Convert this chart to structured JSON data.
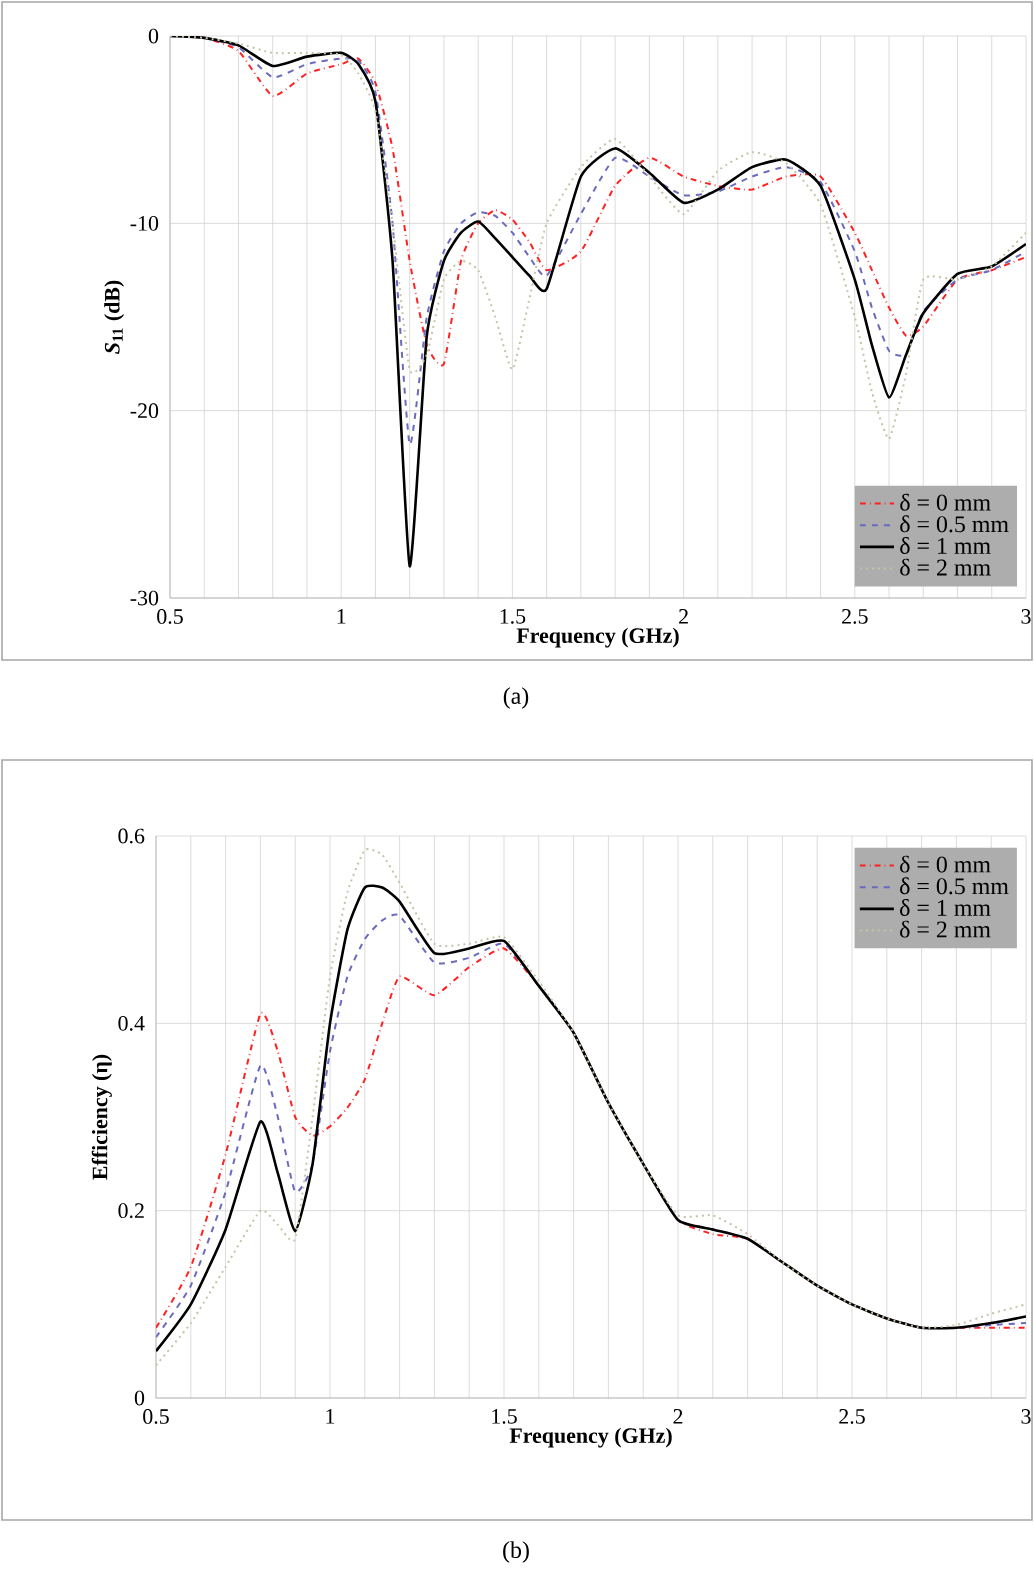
{
  "chart_data": [
    {
      "type": "line",
      "xlabel": "Frequency (GHz)",
      "ylabel": "*S*$_{11}$ (dB)",
      "annotations": [
        "(a)"
      ],
      "x": [
        0.5,
        0.6,
        0.7,
        0.8,
        0.9,
        1.0,
        1.05,
        1.1,
        1.15,
        1.2,
        1.25,
        1.3,
        1.35,
        1.4,
        1.45,
        1.5,
        1.55,
        1.6,
        1.7,
        1.8,
        1.9,
        2.0,
        2.1,
        2.2,
        2.3,
        2.4,
        2.5,
        2.55,
        2.6,
        2.65,
        2.7,
        2.8,
        2.9,
        3.0
      ],
      "series": [
        {
          "name": "δ = 0 mm",
          "color": "#ff2020",
          "line_style": "dashdot",
          "values": [
            0,
            -0.1,
            -0.8,
            -3.2,
            -2,
            -1.5,
            -1.2,
            -2.5,
            -6,
            -12,
            -16.5,
            -17.5,
            -12,
            -10,
            -9.3,
            -9.8,
            -11,
            -12.5,
            -11.5,
            -8,
            -6.5,
            -7.5,
            -8,
            -8.2,
            -7.5,
            -7.5,
            -10.5,
            -12.5,
            -14.5,
            -16,
            -15.5,
            -13,
            -12.5,
            -11.8
          ]
        },
        {
          "name": "δ = 0.5 mm",
          "color": "#6a6ac0",
          "line_style": "dashed",
          "values": [
            0,
            -0.1,
            -0.6,
            -2.2,
            -1.5,
            -1.2,
            -1.3,
            -3,
            -10,
            -21.8,
            -15,
            -11.5,
            -10,
            -9.4,
            -9.6,
            -10.5,
            -11.8,
            -12.8,
            -9.5,
            -6.5,
            -7.5,
            -8.5,
            -8.3,
            -7.5,
            -7.0,
            -7.8,
            -11.5,
            -14.5,
            -16.8,
            -17,
            -14.7,
            -13,
            -12.5,
            -11.5
          ]
        },
        {
          "name": "δ = 1 mm",
          "color": "#000000",
          "line_style": "solid",
          "values": [
            0,
            -0.1,
            -0.5,
            -1.6,
            -1.1,
            -0.9,
            -1.5,
            -3.5,
            -12,
            -28.3,
            -16,
            -12,
            -10.5,
            -9.9,
            -10.8,
            -11.8,
            -12.8,
            -13.5,
            -7.5,
            -6.0,
            -7.3,
            -8.9,
            -8.2,
            -7.0,
            -6.6,
            -8,
            -13,
            -16.5,
            -19.3,
            -17,
            -14.8,
            -12.7,
            -12.3,
            -11.1
          ]
        },
        {
          "name": "δ = 2 mm",
          "color": "#c4c4a8",
          "line_style": "dotted",
          "values": [
            0,
            -0.1,
            -0.4,
            -0.9,
            -0.9,
            -1.0,
            -2,
            -4,
            -10,
            -17.8,
            -17,
            -13,
            -12,
            -12.5,
            -15,
            -17.8,
            -14,
            -10,
            -7,
            -5.5,
            -7.5,
            -9.5,
            -7.2,
            -6.2,
            -6.8,
            -9,
            -15,
            -19,
            -21.5,
            -18,
            -13,
            -13,
            -12.3,
            -10.5
          ]
        }
      ],
      "xlim": [
        0.5,
        3
      ],
      "ylim": [
        -30,
        0
      ],
      "xticks": [
        0.5,
        {
          "value": 0.6,
          "label": null
        },
        {
          "value": 0.7,
          "label": null
        },
        {
          "value": 0.8,
          "label": null
        },
        {
          "value": 0.9,
          "label": null
        },
        1,
        {
          "value": 1.1,
          "label": null
        },
        {
          "value": 1.2,
          "label": null
        },
        {
          "value": 1.3,
          "label": null
        },
        {
          "value": 1.4,
          "label": null
        },
        1.5,
        {
          "value": 1.6,
          "label": null
        },
        {
          "value": 1.7,
          "label": null
        },
        {
          "value": 1.8,
          "label": null
        },
        {
          "value": 1.9,
          "label": null
        },
        2,
        {
          "value": 2.1,
          "label": null
        },
        {
          "value": 2.2,
          "label": null
        },
        {
          "value": 2.3,
          "label": null
        },
        {
          "value": 2.4,
          "label": null
        },
        2.5,
        {
          "value": 2.6,
          "label": null
        },
        {
          "value": 2.7,
          "label": null
        },
        {
          "value": 2.8,
          "label": null
        },
        {
          "value": 2.9,
          "label": null
        },
        3
      ],
      "yticks": [
        -30,
        -20,
        -10,
        0
      ],
      "grid": true,
      "legend": "bottom right"
    },
    {
      "type": "line",
      "xlabel": "Frequency (GHz)",
      "ylabel": "Efficiency (η)",
      "annotations": [
        "(b)"
      ],
      "x": [
        0.5,
        0.6,
        0.7,
        0.8,
        0.85,
        0.9,
        0.95,
        1.0,
        1.05,
        1.1,
        1.15,
        1.2,
        1.3,
        1.4,
        1.5,
        1.6,
        1.7,
        1.8,
        1.9,
        2.0,
        2.1,
        2.2,
        2.3,
        2.4,
        2.5,
        2.6,
        2.7,
        2.8,
        2.9,
        3.0
      ],
      "series": [
        {
          "name": "δ = 0 mm",
          "color": "#ff2020",
          "line_style": "dashdot",
          "values": [
            0.075,
            0.14,
            0.26,
            0.41,
            0.37,
            0.3,
            0.28,
            0.29,
            0.31,
            0.34,
            0.4,
            0.45,
            0.43,
            0.46,
            0.48,
            0.44,
            0.39,
            0.315,
            0.25,
            0.19,
            0.175,
            0.17,
            0.145,
            0.12,
            0.1,
            0.085,
            0.075,
            0.075,
            0.075,
            0.075
          ]
        },
        {
          "name": "δ = 0.5 mm",
          "color": "#6a6ac0",
          "line_style": "dashed",
          "values": [
            0.065,
            0.12,
            0.22,
            0.355,
            0.3,
            0.22,
            0.25,
            0.37,
            0.45,
            0.49,
            0.51,
            0.515,
            0.465,
            0.47,
            0.485,
            0.44,
            0.39,
            0.315,
            0.25,
            0.19,
            0.18,
            0.17,
            0.145,
            0.12,
            0.1,
            0.085,
            0.075,
            0.075,
            0.078,
            0.08
          ]
        },
        {
          "name": "δ = 1 mm",
          "color": "#000000",
          "line_style": "solid",
          "values": [
            0.05,
            0.1,
            0.18,
            0.295,
            0.24,
            0.178,
            0.25,
            0.4,
            0.5,
            0.545,
            0.545,
            0.53,
            0.475,
            0.48,
            0.488,
            0.44,
            0.39,
            0.315,
            0.25,
            0.19,
            0.18,
            0.17,
            0.145,
            0.12,
            0.1,
            0.085,
            0.075,
            0.075,
            0.08,
            0.087
          ]
        },
        {
          "name": "δ = 2 mm",
          "color": "#c4c4a8",
          "line_style": "dotted",
          "values": [
            0.035,
            0.08,
            0.14,
            0.2,
            0.185,
            0.17,
            0.3,
            0.45,
            0.54,
            0.585,
            0.58,
            0.55,
            0.485,
            0.485,
            0.492,
            0.445,
            0.39,
            0.315,
            0.25,
            0.195,
            0.195,
            0.175,
            0.145,
            0.12,
            0.1,
            0.085,
            0.075,
            0.078,
            0.09,
            0.1
          ]
        }
      ],
      "xlim": [
        0.5,
        3
      ],
      "ylim": [
        0,
        0.6
      ],
      "xticks": [
        0.5,
        {
          "value": 0.6,
          "label": null
        },
        {
          "value": 0.7,
          "label": null
        },
        {
          "value": 0.8,
          "label": null
        },
        {
          "value": 0.9,
          "label": null
        },
        1,
        {
          "value": 1.1,
          "label": null
        },
        {
          "value": 1.2,
          "label": null
        },
        {
          "value": 1.3,
          "label": null
        },
        {
          "value": 1.4,
          "label": null
        },
        1.5,
        {
          "value": 1.6,
          "label": null
        },
        {
          "value": 1.7,
          "label": null
        },
        {
          "value": 1.8,
          "label": null
        },
        {
          "value": 1.9,
          "label": null
        },
        2,
        {
          "value": 2.1,
          "label": null
        },
        {
          "value": 2.2,
          "label": null
        },
        {
          "value": 2.3,
          "label": null
        },
        {
          "value": 2.4,
          "label": null
        },
        2.5,
        {
          "value": 2.6,
          "label": null
        },
        {
          "value": 2.7,
          "label": null
        },
        {
          "value": 2.8,
          "label": null
        },
        {
          "value": 2.9,
          "label": null
        },
        3
      ],
      "yticks": [
        0,
        0.2,
        0.4,
        0.6
      ],
      "grid": true,
      "legend": "top right"
    }
  ]
}
